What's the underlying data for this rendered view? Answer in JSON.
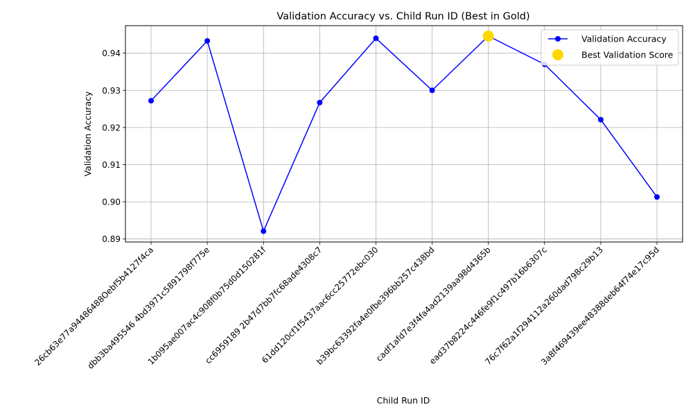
{
  "chart_data": {
    "type": "line",
    "title": "Validation Accuracy vs. Child Run ID (Best in Gold)",
    "xlabel": "Child Run ID",
    "ylabel": "Validation Accuracy",
    "categories": [
      "26cb63e77a94486488Oebf5b4127f4ca",
      "dbb3ba495546 4bd3971c5891798f775e",
      "1b095ae007ac4c908f0b75d0d150281f",
      "cc6959189 2b47d7bb7fc68ade4308c7",
      "61dd120cf1f5437aac6cc25772ebc030",
      "b39bc63392fa4e0fbe396bb257c438bd",
      "cadf1afd7e3f4fa4ad2139aa98d4365b",
      "ead37b8224c446fe9f1c497b16b6307c",
      "76c7f62a1f294112a260dad798c29b13",
      "3a8f469439ee48388deb64f74e17c95d"
    ],
    "series": [
      {
        "name": "Validation Accuracy",
        "color": "#0000ff",
        "values": [
          0.9272,
          0.9433,
          0.8921,
          0.9267,
          0.944,
          0.93,
          0.9446,
          0.937,
          0.9221,
          0.9013
        ]
      }
    ],
    "best": {
      "name": "Best Validation Score",
      "index": 6,
      "value": 0.9446,
      "color": "#ffd700"
    },
    "yticks": [
      "0.89",
      "0.90",
      "0.91",
      "0.92",
      "0.93",
      "0.94"
    ],
    "ytick_values": [
      0.89,
      0.9,
      0.91,
      0.92,
      0.93,
      0.94
    ],
    "ylim": [
      0.8892,
      0.9474
    ],
    "grid": true,
    "legend_position": "upper-right"
  }
}
